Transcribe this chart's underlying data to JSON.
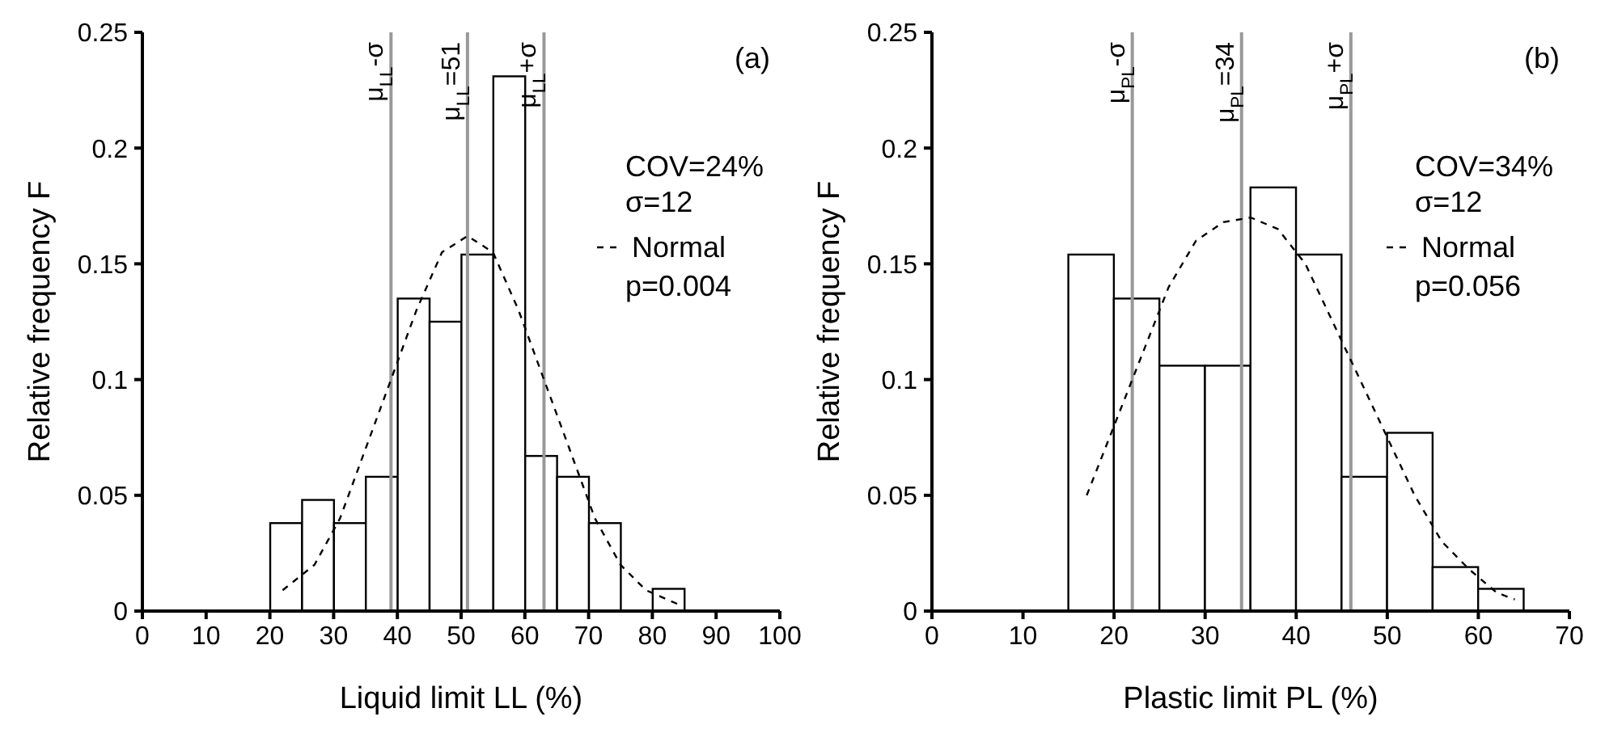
{
  "chart_data": [
    {
      "type": "histogram",
      "xlabel": "Liquid limit LL (%)",
      "ylabel": "Relative frequency F",
      "bins": [
        20,
        25,
        30,
        35,
        40,
        45,
        50,
        55,
        60,
        65,
        70,
        75,
        80,
        85
      ],
      "values": [
        0.038,
        0.048,
        0.038,
        0.058,
        0.135,
        0.125,
        0.154,
        0.231,
        0.067,
        0.058,
        0.038,
        0,
        0.0096
      ],
      "color": "#ffffff",
      "series": [
        {
          "type": "line",
          "name": "Normal",
          "color": "#000000",
          "line_style": "dashed",
          "x": [
            22,
            27,
            31,
            35,
            39,
            43,
            47,
            51,
            55,
            59,
            63,
            67,
            71,
            75,
            79,
            84
          ],
          "values": [
            0.009,
            0.02,
            0.04,
            0.07,
            0.1,
            0.13,
            0.155,
            0.162,
            0.155,
            0.13,
            0.1,
            0.07,
            0.04,
            0.02,
            0.009,
            0.003
          ]
        }
      ],
      "marker": "none",
      "xlim": [
        0,
        100
      ],
      "xticks": [
        0,
        10,
        20,
        30,
        40,
        50,
        60,
        70,
        80,
        90,
        100
      ],
      "ylim": [
        0,
        0.25
      ],
      "yticks": [
        0,
        0.05,
        0.1,
        0.15,
        0.2,
        0.25
      ],
      "grid": false,
      "legend": "right",
      "ref_lines": [
        {
          "axis": "x",
          "value": 39,
          "label": "μ$_{LL}$-σ",
          "color": "#999999"
        },
        {
          "axis": "x",
          "value": 51,
          "label": "μ$_{LL}$=51",
          "color": "#999999"
        },
        {
          "axis": "x",
          "value": 63,
          "label": "μ$_{LL}$+σ",
          "color": "#999999"
        }
      ],
      "annotations": [
        "(a)",
        "COV=24%",
        "σ=12",
        "p=0.004"
      ]
    },
    {
      "type": "histogram",
      "xlabel": "Plastic limit PL (%)",
      "ylabel": "Relative frequency F",
      "bins": [
        15,
        20,
        25,
        30,
        35,
        40,
        45,
        50,
        55,
        60,
        65
      ],
      "values": [
        0.154,
        0.135,
        0.106,
        0.106,
        0.183,
        0.154,
        0.058,
        0.077,
        0.019,
        0.0096
      ],
      "color": "#ffffff",
      "series": [
        {
          "type": "line",
          "name": "Normal",
          "color": "#000000",
          "line_style": "dashed",
          "x": [
            17,
            20,
            23,
            26,
            29,
            32,
            35,
            38,
            41,
            44,
            47,
            50,
            53,
            56,
            59,
            62,
            64
          ],
          "values": [
            0.05,
            0.08,
            0.11,
            0.14,
            0.16,
            0.168,
            0.17,
            0.165,
            0.15,
            0.125,
            0.1,
            0.075,
            0.05,
            0.03,
            0.018,
            0.008,
            0.005
          ]
        }
      ],
      "marker": "none",
      "xlim": [
        0,
        70
      ],
      "xticks": [
        0,
        10,
        20,
        30,
        40,
        50,
        60,
        70
      ],
      "ylim": [
        0,
        0.25
      ],
      "yticks": [
        0,
        0.05,
        0.1,
        0.15,
        0.2,
        0.25
      ],
      "grid": false,
      "legend": "right",
      "ref_lines": [
        {
          "axis": "x",
          "value": 22,
          "label": "μ$_{PL}$-σ",
          "color": "#999999"
        },
        {
          "axis": "x",
          "value": 34,
          "label": "μ$_{PL}$=34",
          "color": "#999999"
        },
        {
          "axis": "x",
          "value": 46,
          "label": "μ$_{PL}$+σ",
          "color": "#999999"
        }
      ],
      "annotations": [
        "(b)",
        "COV=34%",
        "σ=12",
        "p=0.056"
      ]
    }
  ]
}
